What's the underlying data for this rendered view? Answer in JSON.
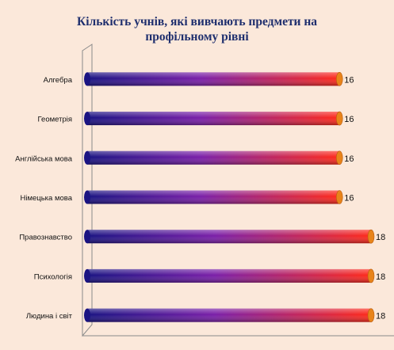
{
  "chart_data": {
    "type": "bar",
    "orientation": "horizontal",
    "title": [
      "Кількість учнів, які вивчають предмети на",
      "профільному рівні"
    ],
    "categories": [
      "Алгебра",
      "Геометрія",
      "Англійська мова",
      "Німецька мова",
      "Правознавство",
      "Психологія",
      "Людина і світ"
    ],
    "values": [
      16,
      16,
      16,
      16,
      18,
      18,
      18
    ],
    "xlim": [
      0,
      18
    ],
    "grid": false,
    "legend": "none",
    "colors": {
      "bar_start": "#1a1382",
      "bar_mid": "#7a1fa8",
      "bar_end": "#ff2a1a",
      "cap": "#e8841a",
      "axis": "#8a8a8a",
      "text": "#111111"
    }
  }
}
